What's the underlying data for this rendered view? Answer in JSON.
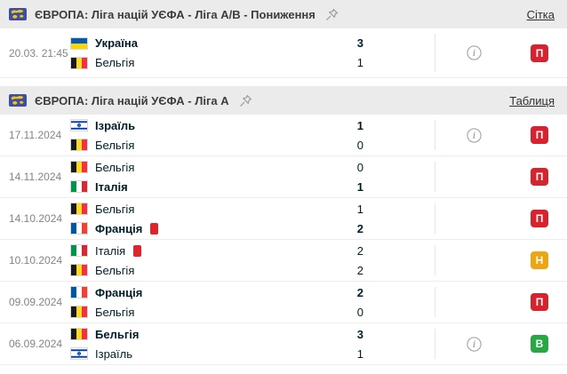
{
  "colors": {
    "loss_badge": "#d6232e",
    "draw_badge": "#eba611",
    "win_badge": "#28a745",
    "red_card": "#e0242b",
    "header_bg": "#ebebeb"
  },
  "sections": [
    {
      "title": "ЄВРОПА: Ліга націй УЄФА - Ліга А/В - Пониження",
      "link_label": "Сітка",
      "matches": [
        {
          "date": "20.03. 21:45",
          "teams": [
            {
              "name": "Україна",
              "flag": "ukraine",
              "score": "3",
              "bold": true
            },
            {
              "name": "Бельгія",
              "flag": "belgium",
              "score": "1",
              "bold": false
            }
          ],
          "info": true,
          "result": {
            "label": "П",
            "type": "loss"
          }
        }
      ]
    },
    {
      "title": "ЄВРОПА: Ліга націй УЄФА - Ліга А",
      "link_label": "Таблиця",
      "matches": [
        {
          "date": "17.11.2024",
          "teams": [
            {
              "name": "Ізраїль",
              "flag": "israel",
              "score": "1",
              "bold": true
            },
            {
              "name": "Бельгія",
              "flag": "belgium",
              "score": "0",
              "bold": false
            }
          ],
          "info": true,
          "result": {
            "label": "П",
            "type": "loss"
          }
        },
        {
          "date": "14.11.2024",
          "teams": [
            {
              "name": "Бельгія",
              "flag": "belgium",
              "score": "0",
              "bold": false
            },
            {
              "name": "Італія",
              "flag": "italy",
              "score": "1",
              "bold": true
            }
          ],
          "info": false,
          "result": {
            "label": "П",
            "type": "loss"
          }
        },
        {
          "date": "14.10.2024",
          "teams": [
            {
              "name": "Бельгія",
              "flag": "belgium",
              "score": "1",
              "bold": false
            },
            {
              "name": "Франція",
              "flag": "france",
              "score": "2",
              "bold": true,
              "red_card": true
            }
          ],
          "info": false,
          "result": {
            "label": "П",
            "type": "loss"
          }
        },
        {
          "date": "10.10.2024",
          "teams": [
            {
              "name": "Італія",
              "flag": "italy",
              "score": "2",
              "bold": false,
              "red_card": true
            },
            {
              "name": "Бельгія",
              "flag": "belgium",
              "score": "2",
              "bold": false
            }
          ],
          "info": false,
          "result": {
            "label": "Н",
            "type": "draw"
          }
        },
        {
          "date": "09.09.2024",
          "teams": [
            {
              "name": "Франція",
              "flag": "france",
              "score": "2",
              "bold": true
            },
            {
              "name": "Бельгія",
              "flag": "belgium",
              "score": "0",
              "bold": false
            }
          ],
          "info": false,
          "result": {
            "label": "П",
            "type": "loss"
          }
        },
        {
          "date": "06.09.2024",
          "teams": [
            {
              "name": "Бельгія",
              "flag": "belgium",
              "score": "3",
              "bold": true
            },
            {
              "name": "Ізраїль",
              "flag": "israel",
              "score": "1",
              "bold": false
            }
          ],
          "info": true,
          "result": {
            "label": "В",
            "type": "win"
          }
        }
      ]
    }
  ]
}
